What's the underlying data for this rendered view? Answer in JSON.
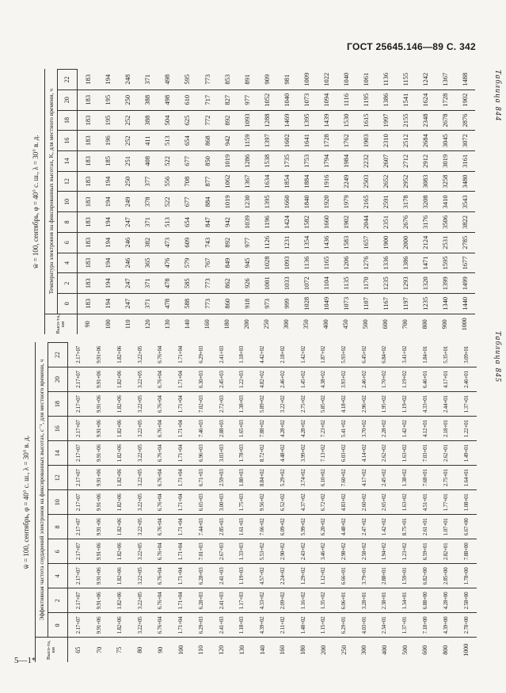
{
  "header": {
    "text": "ГОСТ 25645.146—89 С. 342"
  },
  "footer": {
    "text": "5—1*"
  },
  "tables": [
    {
      "label": "Таблица 844",
      "title": "w̄ = 100, сентябрь, φ = 40° с. ш., λ = 30° в. д.",
      "subtitle": "Температура электронов на фиксированных высотах, K, для местного времени, ч",
      "height_header": "Высо-та, км",
      "heights": [
        "90",
        "100",
        "110",
        "120",
        "130",
        "140",
        "160",
        "180",
        "200",
        "250",
        "300",
        "350",
        "400",
        "450",
        "500",
        "600",
        "700",
        "800",
        "900",
        "1000"
      ],
      "columns": [
        {
          "hour": "0",
          "values": [
            "183",
            "194",
            "247",
            "371",
            "478",
            "588",
            "773",
            "860",
            "918",
            "973",
            "999",
            "1028",
            "1049",
            "1073",
            "1107",
            "1167",
            "1197",
            "1235",
            "1340",
            "1440"
          ]
        },
        {
          "hour": "2",
          "values": [
            "183",
            "194",
            "247",
            "371",
            "478",
            "585",
            "773",
            "862",
            "926",
            "1001",
            "1033",
            "1072",
            "1104",
            "1135",
            "1170",
            "1235",
            "1293",
            "1320",
            "1399",
            "1499"
          ]
        },
        {
          "hour": "4",
          "values": [
            "183",
            "194",
            "246",
            "365",
            "476",
            "579",
            "767",
            "849",
            "945",
            "1028",
            "1093",
            "1136",
            "1165",
            "1206",
            "1276",
            "1336",
            "1386",
            "1471",
            "1595",
            "1677"
          ]
        },
        {
          "hour": "6",
          "values": [
            "183",
            "194",
            "246",
            "382",
            "473",
            "609",
            "743",
            "892",
            "977",
            "1126",
            "1231",
            "1354",
            "1436",
            "1583",
            "1657",
            "1900",
            "2000",
            "2124",
            "2531",
            "2785"
          ]
        },
        {
          "hour": "8",
          "values": [
            "183",
            "194",
            "247",
            "371",
            "513",
            "654",
            "847",
            "942",
            "1039",
            "1196",
            "1424",
            "1582",
            "1660",
            "1902",
            "2044",
            "2351",
            "2676",
            "3176",
            "3506",
            "3822"
          ]
        },
        {
          "hour": "10",
          "values": [
            "183",
            "194",
            "249",
            "378",
            "522",
            "677",
            "884",
            "1019",
            "1230",
            "1395",
            "1660",
            "1840",
            "1920",
            "1979",
            "2165",
            "2591",
            "3178",
            "3208",
            "3410",
            "3543"
          ]
        },
        {
          "hour": "12",
          "values": [
            "183",
            "194",
            "250",
            "377",
            "556",
            "708",
            "877",
            "1062",
            "1367",
            "1634",
            "1854",
            "1884",
            "1916",
            "2249",
            "2503",
            "2652",
            "2952",
            "3083",
            "3258",
            "3480"
          ]
        },
        {
          "hour": "14",
          "values": [
            "183",
            "185",
            "251",
            "408",
            "522",
            "677",
            "850",
            "1019",
            "1286",
            "1538",
            "1735",
            "1753",
            "1794",
            "1984",
            "2232",
            "2607",
            "2712",
            "2912",
            "3019",
            "3161"
          ]
        },
        {
          "hour": "16",
          "values": [
            "183",
            "196",
            "252",
            "411",
            "513",
            "654",
            "868",
            "942",
            "1159",
            "1397",
            "1602",
            "1641",
            "1728",
            "1762",
            "1903",
            "2310",
            "2512",
            "2684",
            "3045",
            "3072"
          ]
        },
        {
          "hour": "18",
          "values": [
            "183",
            "195",
            "252",
            "388",
            "504",
            "625",
            "772",
            "892",
            "1093",
            "1288",
            "1469",
            "1395",
            "1439",
            "1530",
            "1615",
            "1997",
            "2155",
            "2348",
            "2678",
            "2876"
          ]
        },
        {
          "hour": "20",
          "values": [
            "183",
            "195",
            "250",
            "388",
            "498",
            "610",
            "717",
            "827",
            "977",
            "1052",
            "1040",
            "1073",
            "1094",
            "1116",
            "1195",
            "1386",
            "1541",
            "1624",
            "1728",
            "1902"
          ]
        },
        {
          "hour": "22",
          "values": [
            "183",
            "194",
            "248",
            "371",
            "498",
            "595",
            "773",
            "853",
            "891",
            "909",
            "981",
            "1009",
            "1022",
            "1040",
            "1061",
            "1136",
            "1155",
            "1242",
            "1367",
            "1488"
          ]
        }
      ]
    },
    {
      "label": "Таблица 845",
      "title": "w̄ = 100, сентябрь, φ = 40° с. ш., λ = 30° в. д.",
      "subtitle": "Эффективная частота соударений электронов на фиксированных высотах, с⁻¹, для местного времени, ч",
      "height_header": "Высо-та, км",
      "heights": [
        "65",
        "70",
        "75",
        "80",
        "90",
        "100",
        "110",
        "120",
        "130",
        "140",
        "160",
        "180",
        "200",
        "250",
        "300",
        "400",
        "500",
        "600",
        "800",
        "1000"
      ],
      "columns": [
        {
          "hour": "0",
          "values": [
            "2.17+07",
            "9.91+06",
            "1.82+06",
            "3.22+05",
            "6.76+04",
            "1.71+04",
            "6.29+03",
            "2.41+03",
            "1.18+03",
            "4.39+02",
            "2.11+02",
            "1.48+02",
            "1.15+02",
            "6.29+01",
            "4.03+01",
            "2.34+01",
            "1.37+01",
            "7.18+00",
            "4.39+00",
            "2.78+00"
          ]
        },
        {
          "hour": "2",
          "values": [
            "2.17+07",
            "9.91+06",
            "1.82+06",
            "3.22+05",
            "6.76+04",
            "1.71+04",
            "6.28+03",
            "2.41+03",
            "1.17+03",
            "4.33+02",
            "2.09+02",
            "1.16+02",
            "1.35+02",
            "6.06+01",
            "3.28+01",
            "2.38+01",
            "1.34+01",
            "6.88+00",
            "4.28+00",
            "2.58+00"
          ]
        },
        {
          "hour": "4",
          "values": [
            "2.17+07",
            "9.91+06",
            "1.82+06",
            "3.22+05",
            "6.76+04",
            "1.71+04",
            "6.28+03",
            "2.41+03",
            "1.19+03",
            "4.57+02",
            "2.24+02",
            "1.29+02",
            "1.12+02",
            "6.66+01",
            "3.79+01",
            "2.88+01",
            "1.59+01",
            "6.82+00",
            "2.85+00",
            "1.78+00"
          ]
        },
        {
          "hour": "6",
          "values": [
            "2.17+07",
            "9.91+06",
            "1.82+06",
            "3.22+05",
            "6.76+04",
            "1.71+04",
            "7.01+03",
            "2.67+03",
            "1.33+03",
            "5.53+02",
            "2.90+02",
            "2.43+02",
            "3.46+02",
            "2.98+02",
            "2.58+02",
            "1.94+02",
            "1.23+02",
            "6.59+01",
            "2.82+01",
            "7.88+00"
          ]
        },
        {
          "hour": "8",
          "values": [
            "2.17+07",
            "9.91+06",
            "1.82+06",
            "3.22+05",
            "6.76+04",
            "1.71+04",
            "7.44+03",
            "2.85+03",
            "1.61+03",
            "7.66+02",
            "6.09+02",
            "5.99+02",
            "6.20+02",
            "4.48+02",
            "2.47+02",
            "1.42+02",
            "8.75+01",
            "2.61+01",
            "1.07+01",
            "6.67+00"
          ]
        },
        {
          "hour": "10",
          "values": [
            "2.17+07",
            "9.91+06",
            "1.82+06",
            "3.22+05",
            "6.76+04",
            "1.71+04",
            "6.65+03",
            "3.00+03",
            "1.75+03",
            "9.56+02",
            "6.52+02",
            "4.37+02",
            "6.72+02",
            "4.83+02",
            "2.60+02",
            "2.65+02",
            "1.63+02",
            "4.51+01",
            "1.77+01",
            "1.08+01"
          ]
        },
        {
          "hour": "12",
          "values": [
            "2.17+07",
            "9.91+06",
            "1.82+06",
            "3.22+05",
            "6.76+04",
            "1.71+04",
            "6.71+03",
            "2.59+03",
            "1.80+03",
            "8.84+02",
            "5.29+02",
            "3.74+02",
            "6.10+02",
            "7.60+02",
            "4.17+02",
            "2.45+02",
            "1.38+02",
            "7.68+01",
            "2.75+01",
            "1.64+01"
          ]
        },
        {
          "hour": "14",
          "values": [
            "2.17+07",
            "9.91+06",
            "1.82+06",
            "3.22+05",
            "6.76+04",
            "1.71+04",
            "6.96+03",
            "3.03+03",
            "1.78+03",
            "8.72+02",
            "4.48+02",
            "3.99+02",
            "7.13+02",
            "6.03+02",
            "4.14+02",
            "2.62+02",
            "1.63+02",
            "7.03+01",
            "2.62+01",
            "1.49+01"
          ]
        },
        {
          "hour": "16",
          "values": [
            "2.17+07",
            "9.91+06",
            "1.82+06",
            "3.22+05",
            "6.76+04",
            "1.71+04",
            "7.46+03",
            "2.88+03",
            "1.65+03",
            "7.88+02",
            "4.28+02",
            "4.28+02",
            "7.23+02",
            "5.41+02",
            "3.70+02",
            "2.28+02",
            "1.42+02",
            "4.12+01",
            "2.18+01",
            "1.22+01"
          ]
        },
        {
          "hour": "18",
          "values": [
            "2.17+07",
            "9.91+06",
            "1.82+06",
            "3.22+05",
            "6.76+04",
            "1.71+04",
            "7.02+03",
            "2.72+03",
            "1.38+03",
            "5.89+02",
            "3.22+02",
            "2.75+02",
            "5.85+02",
            "4.18+02",
            "2.96+02",
            "1.95+02",
            "1.19+02",
            "4.33+01",
            "2.44+01",
            "1.37+01"
          ]
        },
        {
          "hour": "20",
          "values": [
            "2.17+07",
            "9.91+06",
            "1.82+06",
            "3.22+05",
            "6.76+04",
            "1.71+04",
            "6.30+03",
            "2.45+03",
            "1.22+03",
            "4.82+02",
            "2.46+02",
            "1.45+02",
            "4.38+02",
            "3.93+02",
            "2.46+02",
            "1.70+02",
            "1.19+02",
            "6.46+01",
            "4.17+01",
            "2.46+01"
          ]
        },
        {
          "hour": "22",
          "values": [
            "2.17+07",
            "9.91+06",
            "1.82+06",
            "3.22+05",
            "6.76+04",
            "1.71+04",
            "6.29+03",
            "2.41+03",
            "1.18+03",
            "4.42+02",
            "2.18+02",
            "1.42+02",
            "1.87+02",
            "5.93+02",
            "6.45+02",
            "6.84+02",
            "3.41+02",
            "1.84+01",
            "5.35+01",
            "3.09+01"
          ]
        }
      ]
    }
  ]
}
